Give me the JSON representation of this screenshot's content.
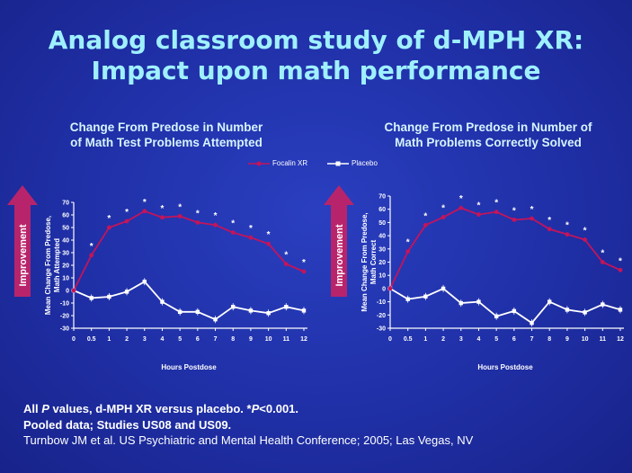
{
  "slide": {
    "title_line1": "Analog classroom study of d-MPH XR:",
    "title_line2": "Impact upon math performance"
  },
  "legend": {
    "focalin": "Focalin XR",
    "placebo": "Placebo"
  },
  "arrow_label": "Improvement",
  "footer": {
    "line1_prefix": "All ",
    "line1_p": "P",
    "line1_mid": " values, d-MPH XR versus placebo. *",
    "line1_p2": "P",
    "line1_suffix": "<0.001.",
    "line2": "Pooled data; Studies US08 and US09.",
    "line3": "Turnbow JM et al. US Psychiatric and Mental Health Conference; 2005; Las Vegas, NV"
  },
  "colors": {
    "title": "#9ff0ff",
    "focalin": "#c4145a",
    "placebo": "#ffffff",
    "arrow": "#b8246b",
    "background": "#1f2fa6"
  },
  "chart_data": [
    {
      "type": "line",
      "title": "Change From Predose in Number of Math Test Problems Attempted",
      "title_line1": "Change From Predose in Number",
      "title_line2": "of Math Test Problems Attempted",
      "ylabel_line1": "Mean Change From Predose,",
      "ylabel_line2": "Math Attempted",
      "xlabel": "Hours Postdose",
      "ylim": [
        -30,
        70
      ],
      "yticks": [
        -30,
        -20,
        -10,
        0,
        10,
        20,
        30,
        40,
        50,
        60,
        70
      ],
      "x": [
        0,
        0.5,
        1,
        2,
        3,
        4,
        5,
        6,
        7,
        8,
        9,
        10,
        11,
        12
      ],
      "xtick_labels": [
        "0",
        "0.5",
        "1",
        "2",
        "3",
        "4",
        "5",
        "6",
        "7",
        "8",
        "9",
        "10",
        "11",
        "12"
      ],
      "series": [
        {
          "name": "Focalin XR",
          "values": [
            0,
            28,
            50,
            55,
            63,
            58,
            59,
            54,
            52,
            46,
            42,
            37,
            21,
            15
          ],
          "significant": [
            false,
            true,
            true,
            true,
            true,
            true,
            true,
            true,
            true,
            true,
            true,
            true,
            true,
            true
          ]
        },
        {
          "name": "Placebo",
          "values": [
            0,
            -6,
            -5,
            -1,
            7,
            -9,
            -17,
            -17,
            -23,
            -13,
            -16,
            -18,
            -13,
            -16
          ]
        }
      ],
      "significance_marker": "*"
    },
    {
      "type": "line",
      "title": "Change From Predose in Number of Math Problems Correctly Solved",
      "title_line1": "Change From Predose in Number of",
      "title_line2": "Math Problems Correctly Solved",
      "ylabel_line1": "Mean Change From Predose,",
      "ylabel_line2": "Math Correct",
      "xlabel": "Hours Postdose",
      "ylim": [
        -30,
        70
      ],
      "yticks": [
        -30,
        -20,
        -10,
        0,
        10,
        20,
        30,
        40,
        50,
        60,
        70
      ],
      "x": [
        0,
        0.5,
        1,
        2,
        3,
        4,
        5,
        6,
        7,
        8,
        9,
        10,
        11,
        12
      ],
      "xtick_labels": [
        "0",
        "0.5",
        "1",
        "2",
        "3",
        "4",
        "5",
        "6",
        "7",
        "8",
        "9",
        "10",
        "11",
        "12"
      ],
      "series": [
        {
          "name": "Focalin XR",
          "values": [
            0,
            28,
            48,
            54,
            61,
            56,
            58,
            52,
            53,
            45,
            41,
            37,
            20,
            14
          ],
          "significant": [
            false,
            true,
            true,
            true,
            true,
            true,
            true,
            true,
            true,
            true,
            true,
            true,
            true,
            true
          ]
        },
        {
          "name": "Placebo",
          "values": [
            0,
            -8,
            -6,
            0,
            -11,
            -10,
            -21,
            -17,
            -26,
            -10,
            -16,
            -18,
            -12,
            -16
          ]
        }
      ],
      "significance_marker": "*"
    }
  ]
}
